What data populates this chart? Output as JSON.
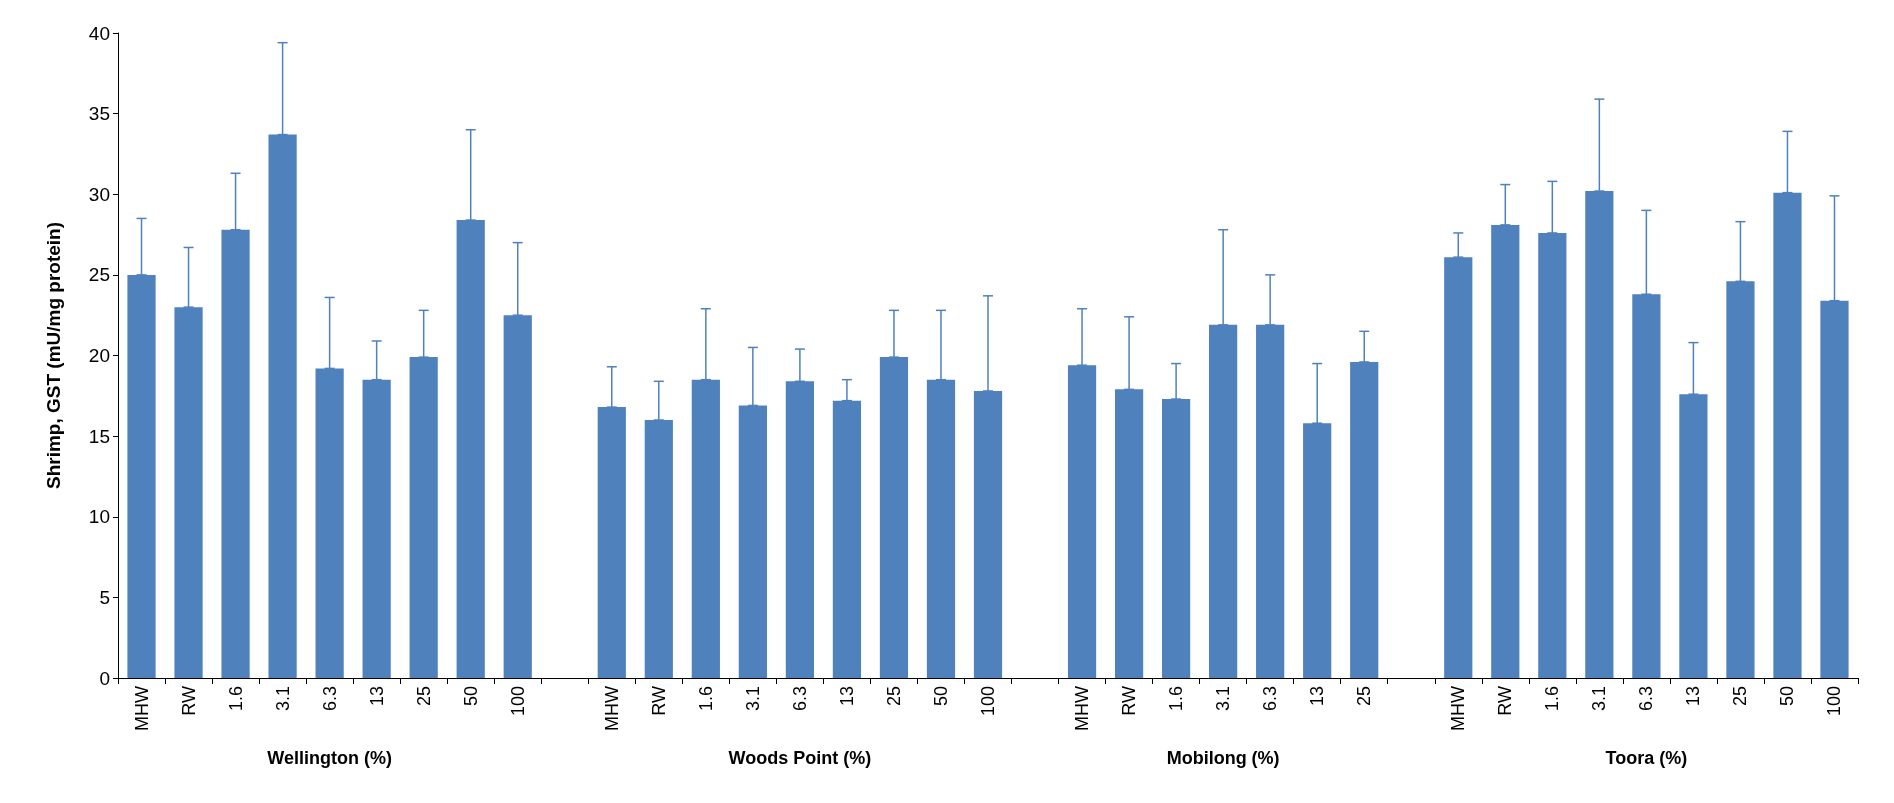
{
  "chart_data": {
    "type": "bar",
    "ylabel": "Shrimp, GST (mU/mg protein)",
    "categories": [
      "MHW",
      "RW",
      "1.6",
      "3.1",
      "6.3",
      "13",
      "25",
      "50",
      "100",
      null,
      "MHW",
      "RW",
      "1.6",
      "3.1",
      "6.3",
      "13",
      "25",
      "50",
      "100",
      null,
      "MHW",
      "RW",
      "1.6",
      "3.1",
      "6.3",
      "13",
      "25",
      null,
      "MHW",
      "RW",
      "1.6",
      "3.1",
      "6.3",
      "13",
      "25",
      "50",
      "100"
    ],
    "values": [
      25.0,
      23.0,
      27.8,
      33.7,
      19.2,
      18.5,
      19.9,
      28.4,
      22.5,
      null,
      16.8,
      16.0,
      18.5,
      16.9,
      18.4,
      17.2,
      19.9,
      18.5,
      17.8,
      null,
      19.4,
      17.9,
      17.3,
      21.9,
      21.9,
      15.8,
      19.6,
      null,
      26.1,
      28.1,
      27.6,
      30.2,
      23.8,
      17.6,
      24.6,
      30.1,
      23.4
    ],
    "errors": [
      [
        25.0,
        28.5
      ],
      [
        23.0,
        26.7
      ],
      [
        27.8,
        31.3
      ],
      [
        33.7,
        39.4
      ],
      [
        19.2,
        23.6
      ],
      [
        18.5,
        20.9
      ],
      [
        19.9,
        22.8
      ],
      [
        28.4,
        34.0
      ],
      [
        22.5,
        27.0
      ],
      null,
      [
        16.8,
        19.3
      ],
      [
        16.0,
        18.4
      ],
      [
        18.5,
        22.9
      ],
      [
        16.9,
        20.5
      ],
      [
        18.4,
        20.4
      ],
      [
        17.2,
        18.5
      ],
      [
        19.9,
        22.8
      ],
      [
        18.5,
        22.8
      ],
      [
        17.8,
        23.7
      ],
      null,
      [
        19.4,
        22.9
      ],
      [
        17.9,
        22.4
      ],
      [
        17.3,
        19.5
      ],
      [
        21.9,
        27.8
      ],
      [
        21.9,
        25.0
      ],
      [
        15.8,
        19.5
      ],
      [
        19.6,
        21.5
      ],
      null,
      [
        26.1,
        27.6
      ],
      [
        28.1,
        30.6
      ],
      [
        27.6,
        30.8
      ],
      [
        30.2,
        35.9
      ],
      [
        23.8,
        29.0
      ],
      [
        17.6,
        20.8
      ],
      [
        24.6,
        28.3
      ],
      [
        30.1,
        33.9
      ],
      [
        23.4,
        29.9
      ]
    ],
    "color": "#4f81bd",
    "annotations": [
      "Wellington (%)",
      "Woods Point (%)",
      "Mobilong (%)",
      "Toora (%)"
    ],
    "ylim": [
      0,
      40
    ],
    "yticks": [
      0,
      5,
      10,
      15,
      20,
      25,
      30,
      35,
      40
    ]
  }
}
